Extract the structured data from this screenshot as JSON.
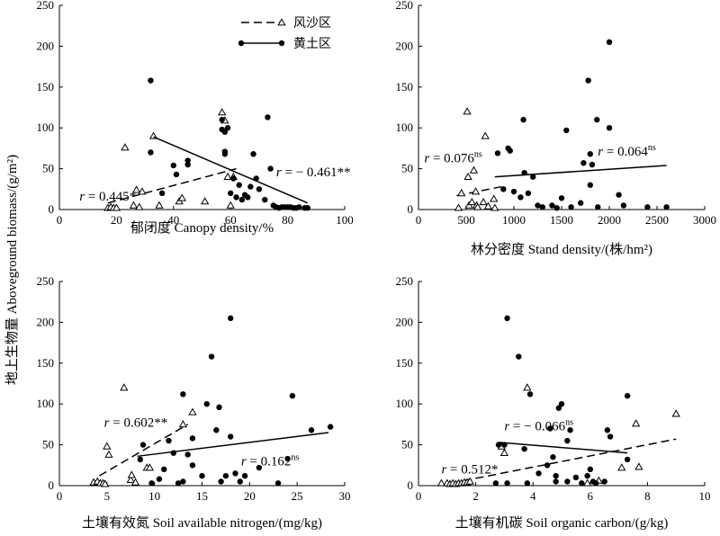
{
  "ylabel": "地上生物量 Aboveground biomass/(g/m²)",
  "legend": {
    "entries": [
      {
        "name": "风沙区",
        "marker": "triangle",
        "line": "dashed"
      },
      {
        "name": "黄土区",
        "marker": "dot",
        "line": "solid"
      }
    ],
    "placement": "top-center of first panel"
  },
  "chart_data": [
    {
      "type": "scatter",
      "xlabel": "郁闭度 Canopy density/%",
      "xlim": [
        0,
        100
      ],
      "xticks": [
        0,
        20,
        40,
        60,
        80,
        100
      ],
      "ylim": [
        0,
        250
      ],
      "yticks": [
        0,
        50,
        100,
        150,
        200,
        250
      ],
      "series": [
        {
          "name": "风沙区",
          "marker": "triangle",
          "points": [
            [
              17,
              2
            ],
            [
              18,
              3
            ],
            [
              19,
              2
            ],
            [
              20,
              2
            ],
            [
              23,
              76
            ],
            [
              26,
              5
            ],
            [
              27,
              24
            ],
            [
              28,
              3
            ],
            [
              29,
              22
            ],
            [
              33,
              90
            ],
            [
              35,
              5
            ],
            [
              42,
              10
            ],
            [
              43,
              14
            ],
            [
              51,
              10
            ],
            [
              57,
              119
            ],
            [
              58,
              109
            ],
            [
              59,
              40
            ],
            [
              60,
              5
            ],
            [
              61,
              40
            ]
          ],
          "fit": {
            "x": [
              17,
              62
            ],
            "y": [
              8,
              50
            ]
          },
          "annotation": {
            "text": "r = 0.445*",
            "x": 7,
            "y": 11
          }
        },
        {
          "name": "黄土区",
          "marker": "dot",
          "points": [
            [
              32,
              158
            ],
            [
              32,
              70
            ],
            [
              36,
              20
            ],
            [
              40,
              54
            ],
            [
              41,
              43
            ],
            [
              45,
              55
            ],
            [
              45,
              60
            ],
            [
              57,
              110
            ],
            [
              57,
              98
            ],
            [
              58,
              95
            ],
            [
              58,
              71
            ],
            [
              58,
              68
            ],
            [
              59,
              100
            ],
            [
              60,
              20
            ],
            [
              61,
              38
            ],
            [
              62,
              15
            ],
            [
              63,
              30
            ],
            [
              64,
              12
            ],
            [
              65,
              18
            ],
            [
              66,
              15
            ],
            [
              67,
              28
            ],
            [
              68,
              68
            ],
            [
              69,
              38
            ],
            [
              70,
              25
            ],
            [
              72,
              12
            ],
            [
              73,
              113
            ],
            [
              74,
              50
            ],
            [
              75,
              5
            ],
            [
              76,
              3
            ],
            [
              77,
              2
            ],
            [
              78,
              3
            ],
            [
              79,
              3
            ],
            [
              80,
              3
            ],
            [
              81,
              3
            ],
            [
              82,
              2
            ],
            [
              83,
              2
            ],
            [
              84,
              3
            ],
            [
              86,
              2
            ],
            [
              87,
              2
            ]
          ],
          "fit": {
            "x": [
              33,
              87
            ],
            "y": [
              89,
              8
            ]
          },
          "annotation": {
            "text": "r = − 0.461**",
            "x": 76,
            "y": 41
          }
        }
      ]
    },
    {
      "type": "scatter",
      "xlabel": "林分密度 Stand density/(株/hm²)",
      "xlim": [
        0,
        3000
      ],
      "xticks": [
        0,
        500,
        1000,
        1500,
        2000,
        2500,
        3000
      ],
      "ylim": [
        0,
        250
      ],
      "yticks": [
        0,
        50,
        100,
        150,
        200,
        250
      ],
      "series": [
        {
          "name": "风沙区",
          "marker": "triangle",
          "points": [
            [
              420,
              2
            ],
            [
              450,
              20
            ],
            [
              510,
              120
            ],
            [
              520,
              40
            ],
            [
              530,
              5
            ],
            [
              560,
              9
            ],
            [
              580,
              48
            ],
            [
              600,
              22
            ],
            [
              610,
              5
            ],
            [
              620,
              3
            ],
            [
              680,
              9
            ],
            [
              700,
              90
            ],
            [
              730,
              4
            ],
            [
              790,
              13
            ],
            [
              800,
              2
            ]
          ],
          "fit": {
            "x": [
              400,
              870
            ],
            "y": [
              17,
              28
            ]
          },
          "annotation": {
            "text": "r = 0.076ns",
            "x": 60,
            "y": 58
          }
        },
        {
          "name": "黄土区",
          "marker": "dot",
          "points": [
            [
              830,
              69
            ],
            [
              890,
              25
            ],
            [
              940,
              75
            ],
            [
              960,
              72
            ],
            [
              1000,
              22
            ],
            [
              1070,
              15
            ],
            [
              1100,
              110
            ],
            [
              1110,
              45
            ],
            [
              1150,
              20
            ],
            [
              1200,
              40
            ],
            [
              1250,
              5
            ],
            [
              1300,
              3
            ],
            [
              1400,
              5
            ],
            [
              1450,
              2
            ],
            [
              1500,
              14
            ],
            [
              1550,
              97
            ],
            [
              1600,
              3
            ],
            [
              1700,
              8
            ],
            [
              1730,
              57
            ],
            [
              1780,
              158
            ],
            [
              1800,
              68
            ],
            [
              1800,
              30
            ],
            [
              1820,
              55
            ],
            [
              1870,
              110
            ],
            [
              1880,
              3
            ],
            [
              2000,
              205
            ],
            [
              2000,
              100
            ],
            [
              2100,
              18
            ],
            [
              2150,
              5
            ],
            [
              2400,
              3
            ],
            [
              2600,
              3
            ]
          ],
          "fit": {
            "x": [
              800,
              2600
            ],
            "y": [
              40,
              54
            ]
          },
          "annotation": {
            "text": "r = 0.064ns",
            "x": 1880,
            "y": 66
          }
        }
      ]
    },
    {
      "type": "scatter",
      "xlabel": "土壤有效氮 Soil available nitrogen/(mg/kg)",
      "xlim": [
        0,
        30
      ],
      "xticks": [
        0,
        5,
        10,
        15,
        20,
        25,
        30
      ],
      "ylim": [
        0,
        250
      ],
      "yticks": [
        0,
        50,
        100,
        150,
        200,
        250
      ],
      "series": [
        {
          "name": "风沙区",
          "marker": "triangle",
          "points": [
            [
              3.6,
              4
            ],
            [
              4.0,
              5
            ],
            [
              4.3,
              3
            ],
            [
              4.6,
              3
            ],
            [
              4.8,
              2
            ],
            [
              5.0,
              48
            ],
            [
              5.2,
              38
            ],
            [
              6.8,
              120
            ],
            [
              7.5,
              7
            ],
            [
              7.6,
              13
            ],
            [
              8.0,
              4
            ],
            [
              9.2,
              22
            ],
            [
              9.5,
              22
            ],
            [
              13.0,
              75
            ],
            [
              14.0,
              90
            ]
          ],
          "fit": {
            "x": [
              4.2,
              13.5
            ],
            "y": [
              12,
              75
            ]
          },
          "annotation": {
            "text": "r = 0.602**",
            "x": 4.7,
            "y": 72
          }
        },
        {
          "name": "黄土区",
          "marker": "dot",
          "points": [
            [
              8.5,
              32
            ],
            [
              8.8,
              50
            ],
            [
              9.7,
              3
            ],
            [
              10.5,
              8
            ],
            [
              11,
              20
            ],
            [
              11.5,
              55
            ],
            [
              12,
              40
            ],
            [
              12.5,
              3
            ],
            [
              13,
              5
            ],
            [
              13,
              112
            ],
            [
              13.5,
              38
            ],
            [
              14,
              25
            ],
            [
              14,
              58
            ],
            [
              15,
              12
            ],
            [
              15.5,
              100
            ],
            [
              16,
              158
            ],
            [
              16.5,
              68
            ],
            [
              16.8,
              96
            ],
            [
              17,
              5
            ],
            [
              17.5,
              12
            ],
            [
              18,
              205
            ],
            [
              18,
              60
            ],
            [
              18.5,
              15
            ],
            [
              19,
              5
            ],
            [
              19.5,
              12
            ],
            [
              21,
              22
            ],
            [
              23,
              3
            ],
            [
              24,
              33
            ],
            [
              24.5,
              110
            ],
            [
              26.5,
              68
            ],
            [
              28.5,
              72
            ]
          ],
          "fit": {
            "x": [
              8.2,
              28.3
            ],
            "y": [
              36,
              65
            ]
          },
          "annotation": {
            "text": "r = 0.162ns",
            "x": 19.1,
            "y": 25
          }
        }
      ]
    },
    {
      "type": "scatter",
      "xlabel": "土壤有机碳 Soil organic carbon/(g/kg)",
      "xlim": [
        0,
        10
      ],
      "xticks": [
        0,
        2,
        4,
        6,
        8,
        10
      ],
      "ylim": [
        0,
        250
      ],
      "yticks": [
        0,
        50,
        100,
        150,
        200,
        250
      ],
      "series": [
        {
          "name": "风沙区",
          "marker": "triangle",
          "points": [
            [
              0.8,
              3
            ],
            [
              1.0,
              3
            ],
            [
              1.1,
              2
            ],
            [
              1.2,
              3
            ],
            [
              1.3,
              2
            ],
            [
              1.4,
              3
            ],
            [
              1.5,
              3
            ],
            [
              1.6,
              4
            ],
            [
              1.7,
              4
            ],
            [
              1.8,
              5
            ],
            [
              2.9,
              48
            ],
            [
              3.0,
              40
            ],
            [
              3.8,
              120
            ],
            [
              5.9,
              3
            ],
            [
              6.3,
              6
            ],
            [
              7.1,
              22
            ],
            [
              7.6,
              76
            ],
            [
              7.7,
              23
            ],
            [
              9.0,
              88
            ]
          ],
          "fit": {
            "x": [
              0.7,
              9.0
            ],
            "y": [
              0,
              57
            ]
          },
          "annotation": {
            "text": "r = 0.512*",
            "x": 0.8,
            "y": 15
          }
        },
        {
          "name": "黄土区",
          "marker": "dot",
          "points": [
            [
              2.7,
              3
            ],
            [
              2.8,
              50
            ],
            [
              3.0,
              50
            ],
            [
              3.1,
              205
            ],
            [
              3.1,
              3
            ],
            [
              3.5,
              158
            ],
            [
              3.7,
              45
            ],
            [
              3.8,
              3
            ],
            [
              3.9,
              112
            ],
            [
              4.2,
              15
            ],
            [
              4.5,
              25
            ],
            [
              4.6,
              70
            ],
            [
              4.7,
              35
            ],
            [
              4.8,
              5
            ],
            [
              4.8,
              12
            ],
            [
              4.9,
              95
            ],
            [
              5.0,
              100
            ],
            [
              5.2,
              55
            ],
            [
              5.2,
              5
            ],
            [
              5.3,
              68
            ],
            [
              5.5,
              10
            ],
            [
              5.7,
              3
            ],
            [
              5.9,
              12
            ],
            [
              6.0,
              20
            ],
            [
              6.1,
              5
            ],
            [
              6.2,
              3
            ],
            [
              6.5,
              5
            ],
            [
              6.6,
              68
            ],
            [
              6.7,
              60
            ],
            [
              7.3,
              110
            ],
            [
              7.3,
              32
            ]
          ],
          "fit": {
            "x": [
              2.8,
              7.3
            ],
            "y": [
              53,
              40
            ]
          },
          "annotation": {
            "text": "r = − 0.066ns",
            "x": 3.0,
            "y": 68
          }
        }
      ]
    }
  ]
}
